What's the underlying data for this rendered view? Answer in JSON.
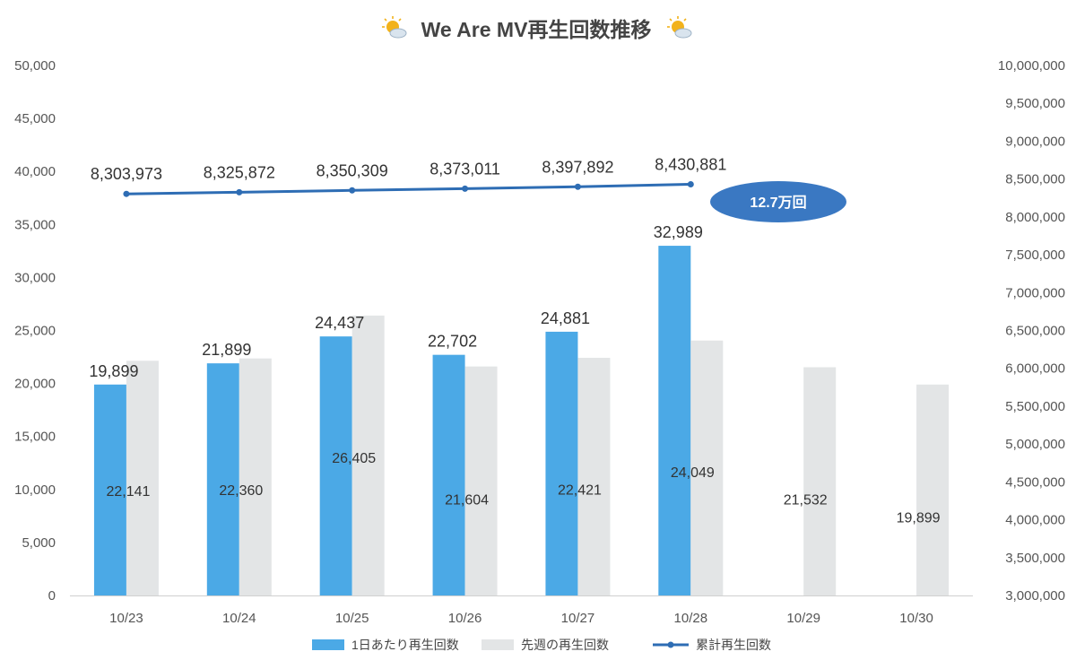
{
  "colors": {
    "daily_bar": "#4BA9E6",
    "last_week_bar": "#E3E5E6",
    "cumulative_line": "#2E6DB4",
    "callout_fill": "#3A78C2",
    "axis_line": "#D0D0D0",
    "title_emoji": "#F2B21B"
  },
  "title_icons": [
    "sun-behind-cloud-icon",
    "sun-behind-cloud-icon"
  ],
  "chart_data": {
    "type": "bar",
    "title": "We Are MV再生回数推移",
    "categories": [
      "10/23",
      "10/24",
      "10/25",
      "10/26",
      "10/27",
      "10/28",
      "10/29",
      "10/30"
    ],
    "series": [
      {
        "name": "1日あたり再生回数",
        "type": "bar",
        "axis": "left",
        "values": [
          19899,
          21899,
          24437,
          22702,
          24881,
          32989,
          null,
          null
        ],
        "labels": [
          "19,899",
          "21,899",
          "24,437",
          "22,702",
          "24,881",
          "32,989",
          "",
          ""
        ]
      },
      {
        "name": "先週の再生回数",
        "type": "bar",
        "axis": "left",
        "values": [
          22141,
          22360,
          26405,
          21604,
          22421,
          24049,
          21532,
          19899
        ],
        "labels": [
          "22,141",
          "22,360",
          "26,405",
          "21,604",
          "22,421",
          "24,049",
          "21,532",
          "19,899"
        ]
      },
      {
        "name": "累計再生回数",
        "type": "line",
        "axis": "right",
        "values": [
          8303973,
          8325872,
          8350309,
          8373011,
          8397892,
          8430881,
          null,
          null
        ],
        "labels": [
          "8,303,973",
          "8,325,872",
          "8,350,309",
          "8,373,011",
          "8,397,892",
          "8,430,881",
          "",
          ""
        ]
      }
    ],
    "y_left": {
      "range": [
        0,
        50000
      ],
      "ticks": [
        0,
        5000,
        10000,
        15000,
        20000,
        25000,
        30000,
        35000,
        40000,
        45000,
        50000
      ],
      "tick_labels": [
        "0",
        "5,000",
        "10,000",
        "15,000",
        "20,000",
        "25,000",
        "30,000",
        "35,000",
        "40,000",
        "45,000",
        "50,000"
      ]
    },
    "y_right": {
      "range": [
        3000000,
        10000000
      ],
      "ticks": [
        3000000,
        3500000,
        4000000,
        4500000,
        5000000,
        5500000,
        6000000,
        6500000,
        7000000,
        7500000,
        8000000,
        8500000,
        9000000,
        9500000,
        10000000
      ],
      "tick_labels": [
        "3,000,000",
        "3,500,000",
        "4,000,000",
        "4,500,000",
        "5,000,000",
        "5,500,000",
        "6,000,000",
        "6,500,000",
        "7,000,000",
        "7,500,000",
        "8,000,000",
        "8,500,000",
        "9,000,000",
        "9,500,000",
        "10,000,000"
      ]
    },
    "annotation": "12.7万回",
    "grid": false,
    "legend_position": "bottom"
  }
}
